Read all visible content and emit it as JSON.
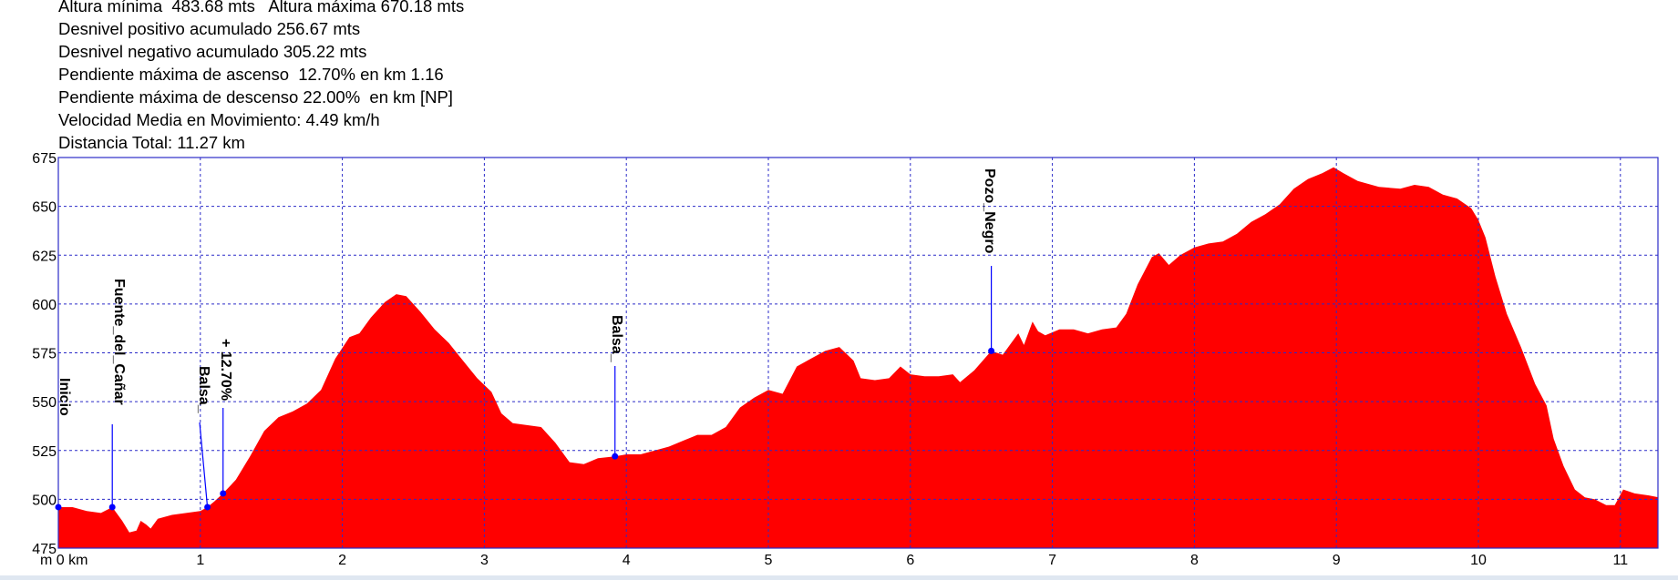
{
  "stats": [
    "Altura mínima  483.68 mts   Altura máxima 670.18 mts",
    "Desnivel positivo acumulado 256.67 mts",
    "Desnivel negativo acumulado 305.22 mts",
    "Pendiente máxima de ascenso  12.70% en km 1.16",
    "Pendiente máxima de descenso 22.00%  en km [NP]",
    "Velocidad Media en Movimiento: 4.49 km/h",
    "Distancia Total: 11.27 km"
  ],
  "chart_data": {
    "type": "area",
    "x_unit_label": "m 0 km",
    "x_ticks": [
      1,
      2,
      3,
      4,
      5,
      6,
      7,
      8,
      9,
      10,
      11
    ],
    "y_ticks": [
      475,
      500,
      525,
      550,
      575,
      600,
      625,
      650,
      675
    ],
    "xlim": [
      0,
      11.27
    ],
    "ylim": [
      475,
      675
    ],
    "grid": true,
    "fill_color": "#ff0000",
    "frame_color": "#2b2bc8",
    "marker_color": "#0000ff",
    "profile": [
      [
        0.0,
        496
      ],
      [
        0.1,
        496
      ],
      [
        0.2,
        494
      ],
      [
        0.3,
        493
      ],
      [
        0.38,
        496
      ],
      [
        0.45,
        489
      ],
      [
        0.5,
        483
      ],
      [
        0.55,
        484
      ],
      [
        0.58,
        489
      ],
      [
        0.62,
        487
      ],
      [
        0.65,
        485
      ],
      [
        0.7,
        490
      ],
      [
        0.8,
        492
      ],
      [
        0.9,
        493
      ],
      [
        1.0,
        494
      ],
      [
        1.05,
        496
      ],
      [
        1.1,
        499
      ],
      [
        1.16,
        503
      ],
      [
        1.25,
        510
      ],
      [
        1.35,
        522
      ],
      [
        1.45,
        535
      ],
      [
        1.55,
        542
      ],
      [
        1.65,
        545
      ],
      [
        1.75,
        549
      ],
      [
        1.85,
        556
      ],
      [
        1.95,
        572
      ],
      [
        2.05,
        583
      ],
      [
        2.12,
        585
      ],
      [
        2.2,
        593
      ],
      [
        2.3,
        601
      ],
      [
        2.38,
        605
      ],
      [
        2.45,
        604
      ],
      [
        2.55,
        596
      ],
      [
        2.65,
        587
      ],
      [
        2.75,
        580
      ],
      [
        2.85,
        571
      ],
      [
        2.95,
        562
      ],
      [
        3.05,
        555
      ],
      [
        3.12,
        544
      ],
      [
        3.2,
        539
      ],
      [
        3.3,
        538
      ],
      [
        3.4,
        537
      ],
      [
        3.5,
        529
      ],
      [
        3.6,
        519
      ],
      [
        3.7,
        518
      ],
      [
        3.8,
        521
      ],
      [
        3.92,
        522
      ],
      [
        4.0,
        523
      ],
      [
        4.1,
        523
      ],
      [
        4.2,
        525
      ],
      [
        4.3,
        527
      ],
      [
        4.4,
        530
      ],
      [
        4.5,
        533
      ],
      [
        4.6,
        533
      ],
      [
        4.7,
        537
      ],
      [
        4.8,
        547
      ],
      [
        4.9,
        552
      ],
      [
        5.0,
        556
      ],
      [
        5.1,
        554
      ],
      [
        5.2,
        568
      ],
      [
        5.3,
        572
      ],
      [
        5.4,
        576
      ],
      [
        5.5,
        578
      ],
      [
        5.6,
        571
      ],
      [
        5.65,
        562
      ],
      [
        5.75,
        561
      ],
      [
        5.85,
        562
      ],
      [
        5.93,
        568
      ],
      [
        6.0,
        564
      ],
      [
        6.1,
        563
      ],
      [
        6.2,
        563
      ],
      [
        6.3,
        564
      ],
      [
        6.35,
        560
      ],
      [
        6.45,
        566
      ],
      [
        6.57,
        576
      ],
      [
        6.65,
        574
      ],
      [
        6.7,
        579
      ],
      [
        6.76,
        585
      ],
      [
        6.8,
        579
      ],
      [
        6.86,
        591
      ],
      [
        6.9,
        586
      ],
      [
        6.95,
        584
      ],
      [
        7.05,
        587
      ],
      [
        7.15,
        587
      ],
      [
        7.25,
        585
      ],
      [
        7.35,
        587
      ],
      [
        7.45,
        588
      ],
      [
        7.52,
        595
      ],
      [
        7.6,
        610
      ],
      [
        7.7,
        624
      ],
      [
        7.75,
        626
      ],
      [
        7.82,
        620
      ],
      [
        7.9,
        625
      ],
      [
        8.0,
        629
      ],
      [
        8.1,
        631
      ],
      [
        8.2,
        632
      ],
      [
        8.3,
        636
      ],
      [
        8.4,
        642
      ],
      [
        8.5,
        646
      ],
      [
        8.6,
        651
      ],
      [
        8.7,
        659
      ],
      [
        8.8,
        664
      ],
      [
        8.9,
        667
      ],
      [
        8.98,
        670
      ],
      [
        9.05,
        667
      ],
      [
        9.15,
        663
      ],
      [
        9.3,
        660
      ],
      [
        9.45,
        659
      ],
      [
        9.55,
        661
      ],
      [
        9.65,
        660
      ],
      [
        9.75,
        656
      ],
      [
        9.85,
        654
      ],
      [
        9.95,
        649
      ],
      [
        10.0,
        643
      ],
      [
        10.05,
        634
      ],
      [
        10.12,
        614
      ],
      [
        10.2,
        595
      ],
      [
        10.3,
        578
      ],
      [
        10.4,
        559
      ],
      [
        10.48,
        548
      ],
      [
        10.53,
        531
      ],
      [
        10.6,
        517
      ],
      [
        10.68,
        505
      ],
      [
        10.75,
        501
      ],
      [
        10.82,
        500
      ],
      [
        10.9,
        497
      ],
      [
        10.96,
        497
      ],
      [
        11.02,
        505
      ],
      [
        11.1,
        503
      ],
      [
        11.2,
        502
      ],
      [
        11.27,
        501
      ]
    ],
    "waypoints": [
      {
        "label": "Inicio",
        "km": 0.0,
        "elev": 496
      },
      {
        "label": "Fuente_del_Cañar",
        "km": 0.38,
        "elev": 496
      },
      {
        "label": "Balsa_",
        "km": 1.05,
        "elev": 496
      },
      {
        "label": "+ 12.70%",
        "km": 1.16,
        "elev": 503
      },
      {
        "label": "Balsa_",
        "km": 3.92,
        "elev": 522
      },
      {
        "label": "Pozo_Negro",
        "km": 6.57,
        "elev": 576
      }
    ]
  }
}
